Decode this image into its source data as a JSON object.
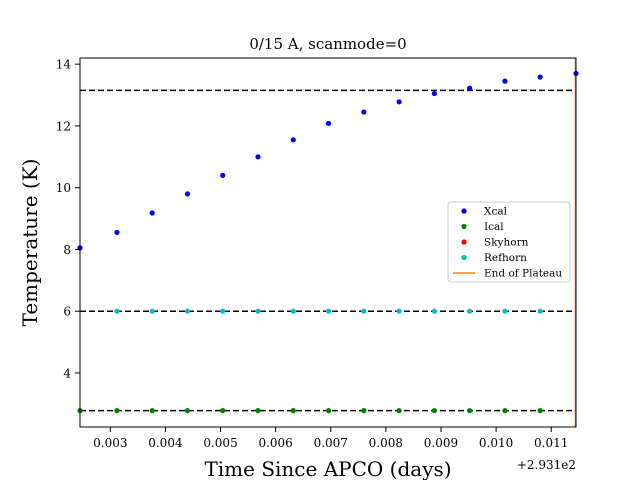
{
  "chart_data": {
    "type": "scatter",
    "title": "0/15 A, scanmode=0",
    "xlabel": "Time Since APCO (days)",
    "ylabel": "Temperature (K)",
    "x_offset_label": "+2.931e2",
    "xlim": [
      0.00245,
      0.01145
    ],
    "ylim": [
      2.25,
      14.2
    ],
    "xticks": [
      0.003,
      0.004,
      0.005,
      0.006,
      0.007,
      0.008,
      0.009,
      0.01,
      0.011
    ],
    "xtick_labels": [
      "0.003",
      "0.004",
      "0.005",
      "0.006",
      "0.007",
      "0.008",
      "0.009",
      "0.010",
      "0.011"
    ],
    "yticks": [
      4,
      6,
      8,
      10,
      12,
      14
    ],
    "ytick_labels": [
      "4",
      "6",
      "8",
      "10",
      "12",
      "14"
    ],
    "hlines": [
      13.15,
      6.0,
      2.78
    ],
    "hline_color": "#000000",
    "end_of_plateau_x": 0.01145,
    "end_of_plateau_color": "#ff7f0e",
    "legend_position": "center-right",
    "series": [
      {
        "name": "Xcal",
        "color": "#0000ff",
        "x": [
          0.00245,
          0.00312,
          0.00376,
          0.0044,
          0.00504,
          0.00568,
          0.00632,
          0.00696,
          0.0076,
          0.00824,
          0.00888,
          0.00952,
          0.01016,
          0.0108,
          0.01145
        ],
        "y": [
          8.05,
          8.55,
          9.18,
          9.8,
          10.4,
          11.0,
          11.55,
          12.08,
          12.45,
          12.78,
          13.05,
          13.22,
          13.45,
          13.58,
          13.7
        ]
      },
      {
        "name": "Ical",
        "color": "#008000",
        "x": [
          0.00245,
          0.00312,
          0.00376,
          0.0044,
          0.00504,
          0.00568,
          0.00632,
          0.00696,
          0.0076,
          0.00824,
          0.00888,
          0.00952,
          0.01016,
          0.0108
        ],
        "y": [
          2.78,
          2.78,
          2.78,
          2.78,
          2.78,
          2.78,
          2.78,
          2.78,
          2.78,
          2.78,
          2.78,
          2.78,
          2.78,
          2.78
        ]
      },
      {
        "name": "Skyhorn",
        "color": "#ff0000",
        "x": [],
        "y": []
      },
      {
        "name": "Refhorn",
        "color": "#00bfbf",
        "x": [
          0.00312,
          0.00376,
          0.0044,
          0.00504,
          0.00568,
          0.00632,
          0.00696,
          0.0076,
          0.00824,
          0.00888,
          0.00952,
          0.01016,
          0.0108
        ],
        "y": [
          6.0,
          6.0,
          6.0,
          6.0,
          6.0,
          6.0,
          6.0,
          6.0,
          6.0,
          6.0,
          6.0,
          6.0,
          6.0
        ]
      }
    ],
    "legend_entries": [
      {
        "name": "Xcal",
        "color": "#0000ff",
        "kind": "point"
      },
      {
        "name": "Ical",
        "color": "#008000",
        "kind": "point"
      },
      {
        "name": "Skyhorn",
        "color": "#ff0000",
        "kind": "point"
      },
      {
        "name": "Refhorn",
        "color": "#00bfbf",
        "kind": "point"
      },
      {
        "name": "End of Plateau",
        "color": "#ff7f0e",
        "kind": "line"
      }
    ]
  }
}
